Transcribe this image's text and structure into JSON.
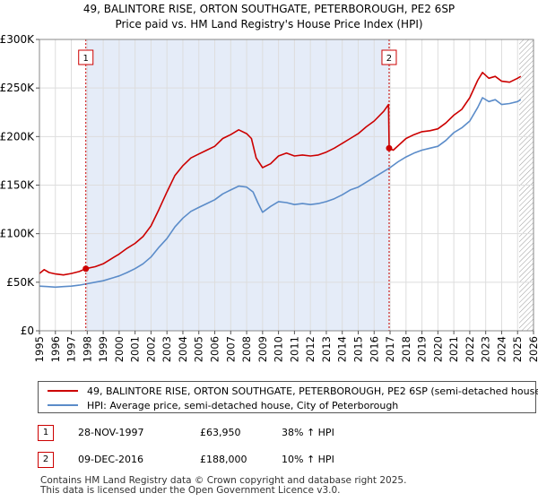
{
  "chart_data": {
    "type": "line",
    "title": "49, BALINTORE RISE, ORTON SOUTHGATE, PETERBOROUGH, PE2 6SP",
    "subtitle": "Price paid vs. HM Land Registry's House Price Index (HPI)",
    "xlim": [
      1995,
      2026
    ],
    "ylim": [
      0,
      300000
    ],
    "x_ticks": [
      "1995",
      "1996",
      "1997",
      "1998",
      "1999",
      "2000",
      "2001",
      "2002",
      "2003",
      "2004",
      "2005",
      "2006",
      "2007",
      "2008",
      "2009",
      "2010",
      "2011",
      "2012",
      "2013",
      "2014",
      "2015",
      "2016",
      "2017",
      "2018",
      "2019",
      "2020",
      "2021",
      "2022",
      "2023",
      "2024",
      "2025",
      "2026"
    ],
    "y_ticks": [
      {
        "value": 0,
        "label": "£0"
      },
      {
        "value": 50000,
        "label": "£50K"
      },
      {
        "value": 100000,
        "label": "£100K"
      },
      {
        "value": 150000,
        "label": "£150K"
      },
      {
        "value": 200000,
        "label": "£200K"
      },
      {
        "value": 250000,
        "label": "£250K"
      },
      {
        "value": 300000,
        "label": "£300K"
      }
    ],
    "grid": true,
    "colors": {
      "property": "#cc0000",
      "hpi": "#5b8cc9",
      "shade": "#dce6f5",
      "hatch": "#9a9a9a"
    },
    "shaded_range": [
      1997.91,
      2016.94
    ],
    "hatched_range": [
      2025.1,
      2026
    ],
    "markers": [
      {
        "label": "1",
        "x": 1997.91,
        "y": 63950
      },
      {
        "label": "2",
        "x": 2016.94,
        "y": 188000
      }
    ],
    "series": [
      {
        "name": "49, BALINTORE RISE, ORTON SOUTHGATE, PETERBOROUGH, PE2 6SP (semi-detached house)",
        "color": "#cc0000",
        "points": [
          [
            1995,
            59000
          ],
          [
            1995.3,
            63000
          ],
          [
            1995.6,
            60000
          ],
          [
            1996,
            58500
          ],
          [
            1996.5,
            57500
          ],
          [
            1997,
            59000
          ],
          [
            1997.5,
            61000
          ],
          [
            1997.91,
            63950
          ],
          [
            1998.5,
            66000
          ],
          [
            1999,
            69000
          ],
          [
            1999.5,
            74000
          ],
          [
            2000,
            79000
          ],
          [
            2000.5,
            85000
          ],
          [
            2001,
            90000
          ],
          [
            2001.5,
            97000
          ],
          [
            2002,
            108000
          ],
          [
            2002.5,
            125000
          ],
          [
            2003,
            143000
          ],
          [
            2003.5,
            160000
          ],
          [
            2004,
            170000
          ],
          [
            2004.5,
            178000
          ],
          [
            2005,
            182000
          ],
          [
            2005.5,
            186000
          ],
          [
            2006,
            190000
          ],
          [
            2006.5,
            198000
          ],
          [
            2007,
            202000
          ],
          [
            2007.5,
            207000
          ],
          [
            2008,
            203000
          ],
          [
            2008.3,
            198000
          ],
          [
            2008.6,
            178000
          ],
          [
            2009,
            168000
          ],
          [
            2009.5,
            172000
          ],
          [
            2010,
            180000
          ],
          [
            2010.5,
            183000
          ],
          [
            2011,
            180000
          ],
          [
            2011.5,
            181000
          ],
          [
            2012,
            180000
          ],
          [
            2012.5,
            181000
          ],
          [
            2013,
            184000
          ],
          [
            2013.5,
            188000
          ],
          [
            2014,
            193000
          ],
          [
            2014.5,
            198000
          ],
          [
            2015,
            203000
          ],
          [
            2015.5,
            210000
          ],
          [
            2016,
            216000
          ],
          [
            2016.6,
            226000
          ],
          [
            2016.9,
            233000
          ],
          [
            2016.94,
            188000
          ],
          [
            2017.2,
            186000
          ],
          [
            2017.6,
            192000
          ],
          [
            2018,
            198000
          ],
          [
            2018.5,
            202000
          ],
          [
            2019,
            205000
          ],
          [
            2019.5,
            206000
          ],
          [
            2020,
            208000
          ],
          [
            2020.5,
            214000
          ],
          [
            2021,
            222000
          ],
          [
            2021.5,
            228000
          ],
          [
            2022,
            240000
          ],
          [
            2022.5,
            258000
          ],
          [
            2022.8,
            266000
          ],
          [
            2023.2,
            260000
          ],
          [
            2023.6,
            262000
          ],
          [
            2024,
            257000
          ],
          [
            2024.5,
            256000
          ],
          [
            2025,
            260000
          ],
          [
            2025.2,
            262000
          ]
        ]
      },
      {
        "name": "HPI: Average price, semi-detached house, City of Peterborough",
        "color": "#5b8cc9",
        "points": [
          [
            1995,
            46000
          ],
          [
            1995.5,
            45500
          ],
          [
            1996,
            45000
          ],
          [
            1996.5,
            45500
          ],
          [
            1997,
            46000
          ],
          [
            1997.5,
            47000
          ],
          [
            1998,
            48500
          ],
          [
            1998.5,
            50000
          ],
          [
            1999,
            51500
          ],
          [
            1999.5,
            54000
          ],
          [
            2000,
            56500
          ],
          [
            2000.5,
            60000
          ],
          [
            2001,
            64000
          ],
          [
            2001.5,
            69000
          ],
          [
            2002,
            76000
          ],
          [
            2002.5,
            86000
          ],
          [
            2003,
            95000
          ],
          [
            2003.5,
            107000
          ],
          [
            2004,
            116000
          ],
          [
            2004.5,
            123000
          ],
          [
            2005,
            127000
          ],
          [
            2005.5,
            131000
          ],
          [
            2006,
            135000
          ],
          [
            2006.5,
            141000
          ],
          [
            2007,
            145000
          ],
          [
            2007.5,
            149000
          ],
          [
            2008,
            148000
          ],
          [
            2008.4,
            143000
          ],
          [
            2008.7,
            132000
          ],
          [
            2009,
            122000
          ],
          [
            2009.5,
            128000
          ],
          [
            2010,
            133000
          ],
          [
            2010.5,
            132000
          ],
          [
            2011,
            130000
          ],
          [
            2011.5,
            131000
          ],
          [
            2012,
            130000
          ],
          [
            2012.5,
            131000
          ],
          [
            2013,
            133000
          ],
          [
            2013.5,
            136000
          ],
          [
            2014,
            140000
          ],
          [
            2014.5,
            145000
          ],
          [
            2015,
            148000
          ],
          [
            2015.5,
            153000
          ],
          [
            2016,
            158000
          ],
          [
            2016.5,
            163000
          ],
          [
            2017,
            168000
          ],
          [
            2017.5,
            174000
          ],
          [
            2018,
            179000
          ],
          [
            2018.5,
            183000
          ],
          [
            2019,
            186000
          ],
          [
            2019.5,
            188000
          ],
          [
            2020,
            190000
          ],
          [
            2020.5,
            196000
          ],
          [
            2021,
            204000
          ],
          [
            2021.5,
            209000
          ],
          [
            2022,
            216000
          ],
          [
            2022.5,
            230000
          ],
          [
            2022.8,
            240000
          ],
          [
            2023.2,
            236000
          ],
          [
            2023.6,
            238000
          ],
          [
            2024,
            233000
          ],
          [
            2024.5,
            234000
          ],
          [
            2025,
            236000
          ],
          [
            2025.2,
            238000
          ]
        ]
      }
    ]
  },
  "legend": {
    "property_label": "49, BALINTORE RISE, ORTON SOUTHGATE, PETERBOROUGH, PE2 6SP (semi-detached house)",
    "hpi_label": "HPI: Average price, semi-detached house, City of Peterborough"
  },
  "sales": [
    {
      "label": "1",
      "date": "28-NOV-1997",
      "price": "£63,950",
      "hpi": "38% ↑ HPI"
    },
    {
      "label": "2",
      "date": "09-DEC-2016",
      "price": "£188,000",
      "hpi": "10% ↑ HPI"
    }
  ],
  "footer": {
    "line1": "Contains HM Land Registry data © Crown copyright and database right 2025.",
    "line2": "This data is licensed under the Open Government Licence v3.0."
  }
}
